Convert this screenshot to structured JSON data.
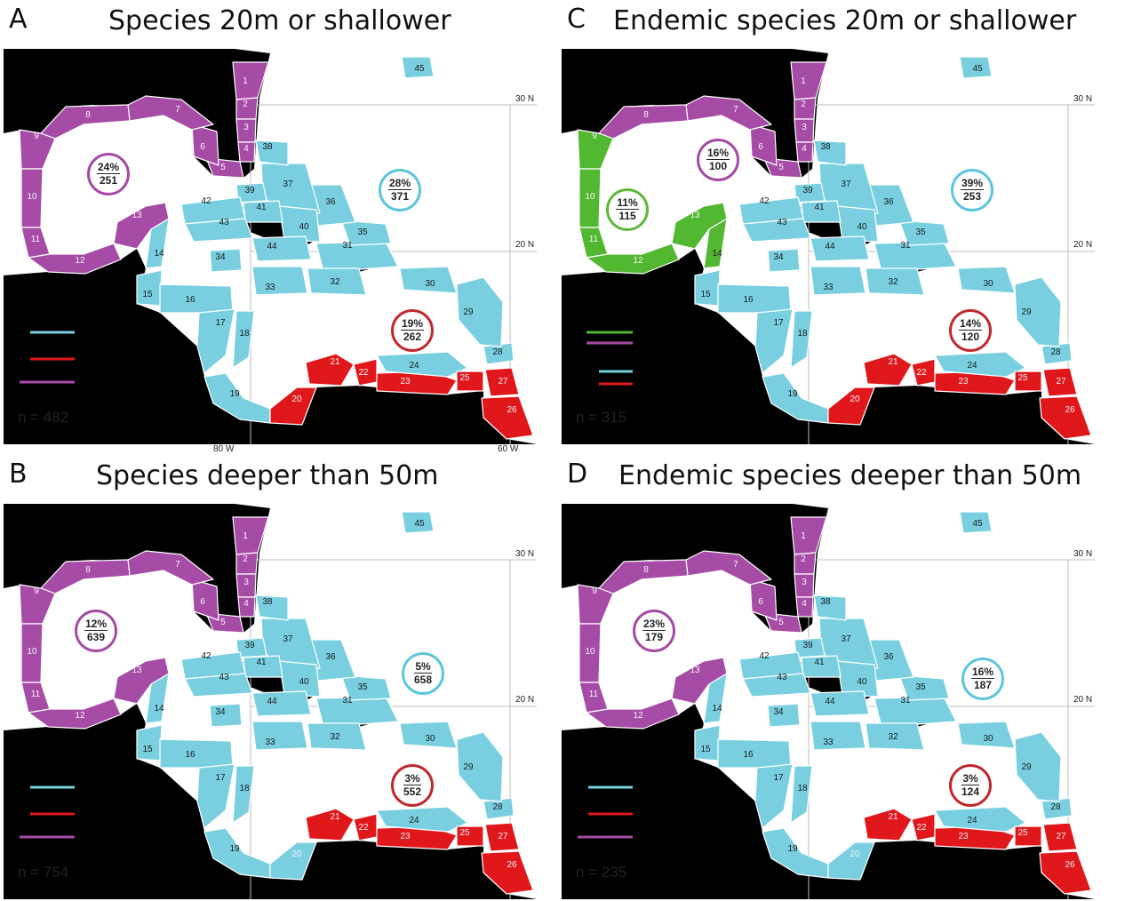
{
  "colors": {
    "land": "#000000",
    "purple": "#a64ca6",
    "cyan": "#79cfe0",
    "red": "#e0171b",
    "green": "#52b832",
    "grid": "#bdbdbd",
    "cyan_border": "#5cc6dd",
    "red_border": "#c1272d",
    "purple_border": "#a54aa6",
    "green_border": "#5fb83a"
  },
  "panels": [
    {
      "id": "A",
      "label": "A",
      "title": "Species 20m or shallower",
      "n": "n = 482",
      "circles": [
        {
          "pct": "24%",
          "count": "251",
          "color": "purple",
          "pos": "gulf"
        },
        {
          "pct": "28%",
          "count": "371",
          "color": "cyan",
          "pos": "atlantic"
        },
        {
          "pct": "19%",
          "count": "262",
          "color": "red",
          "pos": "southeast"
        }
      ],
      "tree": [
        "cyan",
        "red",
        "purple"
      ]
    },
    {
      "id": "C",
      "label": "C",
      "title": "Endemic species 20m or shallower",
      "n": "n = 315",
      "circles": [
        {
          "pct": "16%",
          "count": "100",
          "color": "purple",
          "pos": "gulf"
        },
        {
          "pct": "11%",
          "count": "115",
          "color": "green",
          "pos": "west"
        },
        {
          "pct": "39%",
          "count": "253",
          "color": "cyan",
          "pos": "atlantic"
        },
        {
          "pct": "14%",
          "count": "120",
          "color": "red",
          "pos": "southeast"
        }
      ],
      "tree": [
        "green",
        "purple",
        "cyan",
        "red"
      ]
    },
    {
      "id": "B",
      "label": "B",
      "title": "Species deeper than 50m",
      "n": "n = 754",
      "circles": [
        {
          "pct": "12%",
          "count": "639",
          "color": "purple",
          "pos": "gulf"
        },
        {
          "pct": "5%",
          "count": "658",
          "color": "cyan",
          "pos": "atlantic"
        },
        {
          "pct": "3%",
          "count": "552",
          "color": "red",
          "pos": "southeast"
        }
      ],
      "tree": [
        "cyan",
        "red",
        "purple"
      ]
    },
    {
      "id": "D",
      "label": "D",
      "title": "Endemic species deeper than 50m",
      "n": "n = 235",
      "circles": [
        {
          "pct": "23%",
          "count": "179",
          "color": "purple",
          "pos": "gulf"
        },
        {
          "pct": "16%",
          "count": "187",
          "color": "cyan",
          "pos": "atlantic"
        },
        {
          "pct": "3%",
          "count": "124",
          "color": "red",
          "pos": "southeast"
        }
      ],
      "tree": [
        "cyan",
        "red",
        "purple"
      ]
    }
  ],
  "axis_labels": {
    "lat30": "30 N",
    "lat20": "20 N",
    "lon80": "80 W",
    "lon60": "60 W"
  },
  "region_numbers": [
    "1",
    "2",
    "3",
    "4",
    "5",
    "6",
    "7",
    "8",
    "9",
    "10",
    "11",
    "12",
    "13",
    "14",
    "15",
    "16",
    "17",
    "18",
    "19",
    "20",
    "21",
    "22",
    "23",
    "24",
    "25",
    "26",
    "27",
    "28",
    "29",
    "30",
    "31",
    "32",
    "33",
    "34",
    "35",
    "36",
    "37",
    "38",
    "39",
    "40",
    "41",
    "42",
    "43",
    "44",
    "45"
  ]
}
